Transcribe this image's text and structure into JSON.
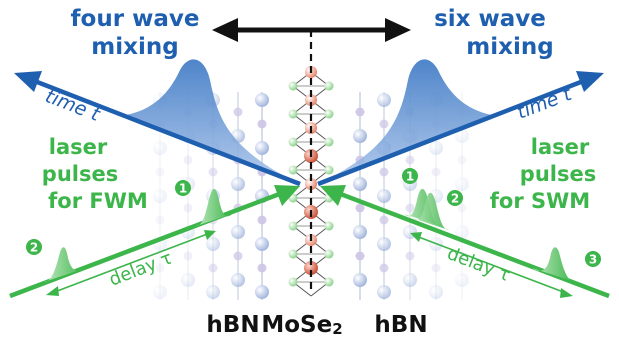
{
  "labels": {
    "fwm_title_line1": "four wave",
    "fwm_title_line2": "mixing",
    "swm_title_line1": "six wave",
    "swm_title_line2": "mixing",
    "time_left": "time t",
    "time_right": "time t",
    "laser_left_line1": "laser",
    "laser_left_line2": "pulses",
    "laser_left_line3": "for FWM",
    "laser_right_line1": "laser",
    "laser_right_line2": "pulses",
    "laser_right_line3": "for SWM",
    "delay_left": "delay τ",
    "delay_right": "delay τ",
    "layer_left": "hBN",
    "layer_center_base": "MoSe",
    "layer_center_sub": "2",
    "layer_right": "hBN"
  },
  "badges": {
    "left": [
      "1",
      "2"
    ],
    "right": [
      "1",
      "2",
      "3"
    ]
  },
  "colors": {
    "signal_blue": "#1f5fb0",
    "laser_green": "#3cb54a",
    "mose2_pink": "#f4b7a9",
    "hbn_blue": "#b9c9e8"
  }
}
